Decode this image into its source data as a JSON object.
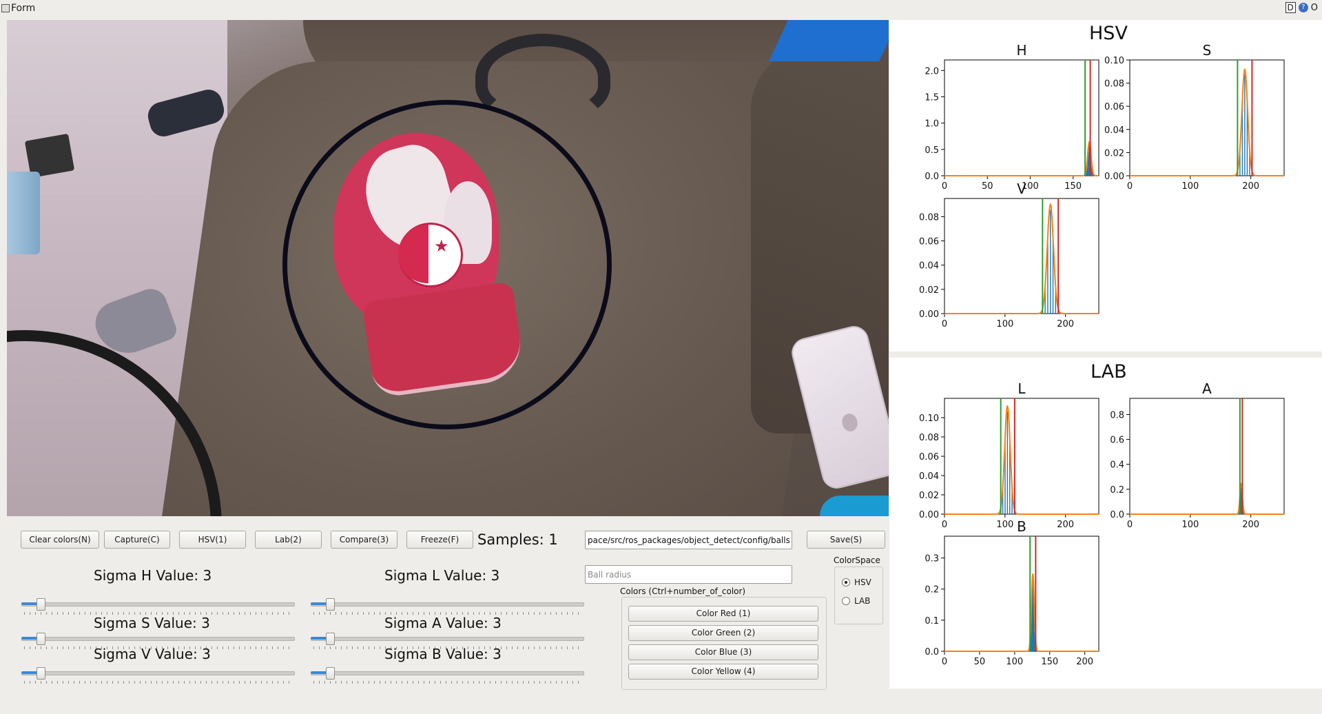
{
  "window": {
    "title": "Form",
    "help_label": "D",
    "help_icon": "?",
    "extra": "O"
  },
  "toolbar": {
    "clear": "Clear colors(N)",
    "capture": "Capture(C)",
    "hsv": "HSV(1)",
    "lab": "Lab(2)",
    "compare": "Compare(3)",
    "freeze": "Freeze(F)",
    "samples": "Samples: 1",
    "path_value": "pace/src/ros_packages/object_detect/config/balls/",
    "save": "Save(S)",
    "ball_radius_placeholder": "Ball radius"
  },
  "sigmas": {
    "h": {
      "label": "Sigma H Value: 3",
      "value": 3
    },
    "s": {
      "label": "Sigma S Value: 3",
      "value": 3
    },
    "v": {
      "label": "Sigma V Value: 3",
      "value": 3
    },
    "l": {
      "label": "Sigma L Value: 3",
      "value": 3
    },
    "a": {
      "label": "Sigma A Value: 3",
      "value": 3
    },
    "b": {
      "label": "Sigma B Value: 3",
      "value": 3
    }
  },
  "colors": {
    "title": "Colors (Ctrl+number_of_color)",
    "red": "Color Red (1)",
    "green": "Color Green (2)",
    "blue": "Color Blue (3)",
    "yellow": "Color Yellow (4)"
  },
  "colorspace": {
    "title": "ColorSpace",
    "options": [
      "HSV",
      "LAB"
    ],
    "selected": "HSV"
  },
  "accent_colors": {
    "histogram": "#1f77b4",
    "fit": "#ff7f0e",
    "lower": "#2ca02c",
    "upper": "#d62728"
  },
  "chart_data": [
    {
      "type": "bar",
      "group": "HSV",
      "title": "H",
      "xlim": [
        0,
        180
      ],
      "ylim": [
        0,
        2.2
      ],
      "xticks": [
        "0",
        "50",
        "100",
        "150"
      ],
      "yticks": [
        "0.0",
        "0.5",
        "1.0",
        "1.5",
        "2.0"
      ],
      "lower": 164,
      "upper": 170,
      "peak_x": 169,
      "peak_y": 0.65
    },
    {
      "type": "bar",
      "group": "HSV",
      "title": "S",
      "xlim": [
        0,
        255
      ],
      "ylim": [
        0,
        0.1
      ],
      "xticks": [
        "0",
        "100",
        "200"
      ],
      "yticks": [
        "0.00",
        "0.02",
        "0.04",
        "0.06",
        "0.08",
        "0.10"
      ],
      "lower": 178,
      "upper": 202,
      "peak_x": 190,
      "peak_y": 0.092
    },
    {
      "type": "bar",
      "group": "HSV",
      "title": "V",
      "xlim": [
        0,
        255
      ],
      "ylim": [
        0,
        0.095
      ],
      "xticks": [
        "0",
        "100",
        "200"
      ],
      "yticks": [
        "0.00",
        "0.02",
        "0.04",
        "0.06",
        "0.08"
      ],
      "lower": 162,
      "upper": 188,
      "peak_x": 175,
      "peak_y": 0.09
    },
    {
      "type": "bar",
      "group": "LAB",
      "title": "L",
      "xlim": [
        0,
        255
      ],
      "ylim": [
        0,
        0.12
      ],
      "xticks": [
        "0",
        "100",
        "200"
      ],
      "yticks": [
        "0.00",
        "0.02",
        "0.04",
        "0.06",
        "0.08",
        "0.10"
      ],
      "lower": 93,
      "upper": 116,
      "peak_x": 104,
      "peak_y": 0.112
    },
    {
      "type": "bar",
      "group": "LAB",
      "title": "A",
      "xlim": [
        0,
        255
      ],
      "ylim": [
        0,
        0.93
      ],
      "xticks": [
        "0",
        "100",
        "200"
      ],
      "yticks": [
        "0.0",
        "0.2",
        "0.4",
        "0.6",
        "0.8"
      ],
      "lower": 182,
      "upper": 186,
      "peak_x": 184,
      "peak_y": 0.25
    },
    {
      "type": "bar",
      "group": "LAB",
      "title": "B",
      "xlim": [
        0,
        220
      ],
      "ylim": [
        0,
        0.37
      ],
      "xticks": [
        "0",
        "50",
        "100",
        "150",
        "200"
      ],
      "yticks": [
        "0.0",
        "0.1",
        "0.2",
        "0.3"
      ],
      "lower": 122,
      "upper": 130,
      "peak_x": 126,
      "peak_y": 0.25
    }
  ],
  "sections": {
    "hsv": "HSV",
    "lab": "LAB"
  }
}
